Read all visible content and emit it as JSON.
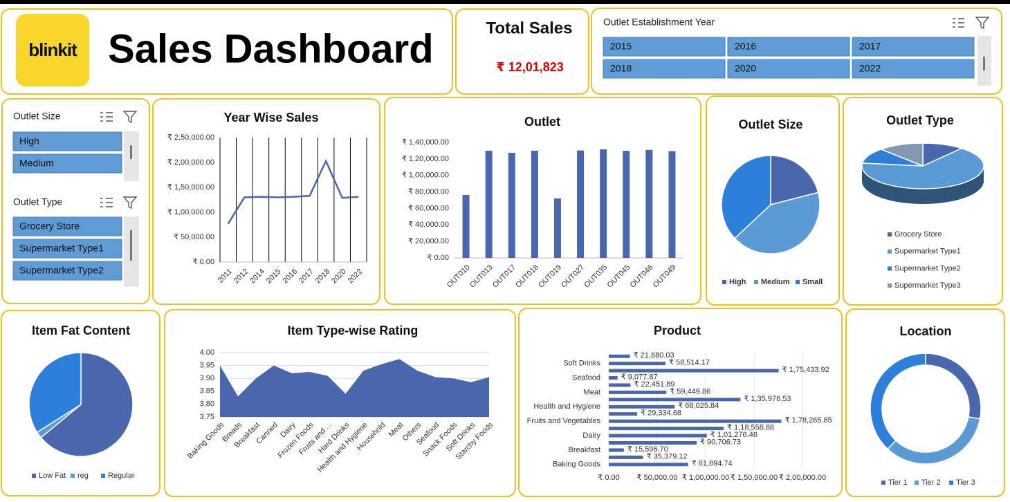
{
  "header": {
    "logo": "blinkit",
    "title": "Sales Dashboard"
  },
  "kpi": {
    "label": "Total Sales",
    "value": "₹ 12,01,823"
  },
  "slicers": [
    {
      "title": "Outlet Establishment Year",
      "items": [
        "2015",
        "2016",
        "2017",
        "2018",
        "2020",
        "2022"
      ]
    },
    {
      "title": "Outlet Size",
      "items": [
        "High",
        "Medium"
      ]
    },
    {
      "title": "Outlet Type",
      "items": [
        "Grocery Store",
        "Supermarket Type1",
        "Supermarket Type2"
      ]
    }
  ],
  "chart_data": [
    {
      "type": "line",
      "title": "Year Wise Sales",
      "categories": [
        "2011",
        "2012",
        "2014",
        "2015",
        "2016",
        "2017",
        "2018",
        "2020",
        "2022"
      ],
      "values": [
        77000,
        130000,
        131000,
        130000,
        131000,
        133000,
        203000,
        129000,
        131000
      ],
      "color": "#4a66ac",
      "ylim": [
        0,
        250000
      ],
      "yticks": [
        {
          "value": 0,
          "label": "₹ 0.00"
        },
        {
          "value": 50000,
          "label": "₹ 50,000.00"
        },
        {
          "value": 100000,
          "label": "₹ 1,00,000.00"
        },
        {
          "value": 150000,
          "label": "₹ 1,50,000.00"
        },
        {
          "value": 200000,
          "label": "₹ 2,00,000.00"
        },
        {
          "value": 250000,
          "label": "₹ 2,50,000.00"
        }
      ],
      "grid": false
    },
    {
      "type": "bar",
      "title": "Outlet",
      "categories": [
        "OUT010",
        "OUT013",
        "OUT017",
        "OUT018",
        "OUT019",
        "OUT027",
        "OUT035",
        "OUT045",
        "OUT046",
        "OUT049"
      ],
      "values": [
        76300,
        130000,
        127400,
        130000,
        72100,
        130300,
        131600,
        129800,
        131000,
        129500
      ],
      "color": "#4a66ac",
      "ylim": [
        0,
        140000
      ],
      "yticks": [
        {
          "value": 0,
          "label": "₹ 0.00"
        },
        {
          "value": 20000,
          "label": "₹ 20,000.00"
        },
        {
          "value": 40000,
          "label": "₹ 40,000.00"
        },
        {
          "value": 60000,
          "label": "₹ 60,000.00"
        },
        {
          "value": 80000,
          "label": "₹ 80,000.00"
        },
        {
          "value": 100000,
          "label": "₹ 1,00,000.00"
        },
        {
          "value": 120000,
          "label": "₹ 1,20,000.00"
        },
        {
          "value": 140000,
          "label": "₹ 1,40,000.00"
        }
      ],
      "grid": false
    },
    {
      "type": "pie",
      "title": "Outlet Size",
      "categories": [
        "High",
        "Medium",
        "Small"
      ],
      "values": [
        21,
        42,
        37
      ],
      "colors": [
        "#4a66ac",
        "#5b9bd5",
        "#2e7fd9"
      ],
      "legend": "bottom"
    },
    {
      "type": "pie",
      "title": "Outlet Type",
      "3d": true,
      "categories": [
        "Grocery Store",
        "Supermarket Type1",
        "Supermarket Type2",
        "Supermarket Type3"
      ],
      "values": [
        11,
        66,
        11,
        12
      ],
      "colors": [
        "#4a66ac",
        "#5b9bd5",
        "#2e7fd9",
        "#8497b0"
      ],
      "legend": "bottom"
    },
    {
      "type": "pie",
      "title": "Item Fat Content",
      "categories": [
        "Low Fat",
        "reg",
        "Regular"
      ],
      "values": [
        64,
        2,
        34
      ],
      "colors": [
        "#4a66ac",
        "#5b9bd5",
        "#2e7fd9"
      ],
      "legend": "bottom"
    },
    {
      "type": "area",
      "title": "Item Type-wise Rating",
      "categories": [
        "Baking Goods",
        "Breads",
        "Breakfast",
        "Canned",
        "Dairy",
        "Frozen Foods",
        "Fruits and ...",
        "Hard Drinks",
        "Health and Hygiene",
        "Household",
        "Meat",
        "Others",
        "Seafood",
        "Snack Foods",
        "Soft Drinks",
        "Starchy Foods"
      ],
      "values": [
        3.95,
        3.83,
        3.9,
        3.95,
        3.92,
        3.925,
        3.91,
        3.84,
        3.93,
        3.955,
        3.975,
        3.93,
        3.905,
        3.9,
        3.885,
        3.905
      ],
      "color": "#4a66ac",
      "ylim": [
        3.75,
        4.0
      ],
      "yticks": [
        3.75,
        {
          "value": 3.8,
          "label": "3.80"
        },
        3.85,
        {
          "value": 3.9,
          "label": "3.90"
        },
        3.95,
        {
          "value": 4.0,
          "label": "4.00"
        }
      ],
      "grid": true
    },
    {
      "type": "barh",
      "title": "Product",
      "categories": [
        "Baking Goods",
        null,
        "Breakfast",
        null,
        "Dairy",
        null,
        "Fruits and Vegetables",
        null,
        "Health and Hygiene",
        null,
        "Meat",
        null,
        "Seafood",
        null,
        "Soft Drinks",
        null
      ],
      "values": [
        81894.74,
        35379.12,
        15596.7,
        90706.73,
        101276.46,
        118558.88,
        178265.85,
        29334.68,
        68025.84,
        135976.53,
        59449.86,
        22451.89,
        9077.87,
        175433.92,
        58514.17,
        21880.03
      ],
      "value_labels": [
        "₹ 81,894.74",
        "₹ 35,379.12",
        "₹ 15,596.70",
        "₹ 90,706.73",
        "₹ 1,01,276.46",
        "₹ 1,18,558.88",
        "₹ 1,78,265.85",
        "₹ 29,334.68",
        "₹ 68,025.84",
        "₹ 1,35,976.53",
        "₹ 59,449.86",
        "₹ 22,451.89",
        "₹ 9,077.87",
        "₹ 1,75,433.92",
        "₹ 58,514.17",
        "₹ 21,880.03"
      ],
      "color": "#4a66ac",
      "xlim": [
        0,
        200000
      ],
      "xticks": [
        {
          "value": 0,
          "label": "₹ 0.00"
        },
        {
          "value": 50000,
          "label": "₹ 50,000.00"
        },
        {
          "value": 100000,
          "label": "₹ 1,00,000.00"
        },
        {
          "value": 150000,
          "label": "₹ 1,50,000.00"
        },
        {
          "value": 200000,
          "label": "₹ 2,00,000.00"
        }
      ],
      "grid": true
    },
    {
      "type": "donut",
      "title": "Location",
      "categories": [
        "Tier 1",
        "Tier 2",
        "Tier 3"
      ],
      "values": [
        28,
        34,
        38
      ],
      "colors": [
        "#4a66ac",
        "#5b9bd5",
        "#2e7fd9"
      ],
      "legend": "bottom"
    }
  ]
}
